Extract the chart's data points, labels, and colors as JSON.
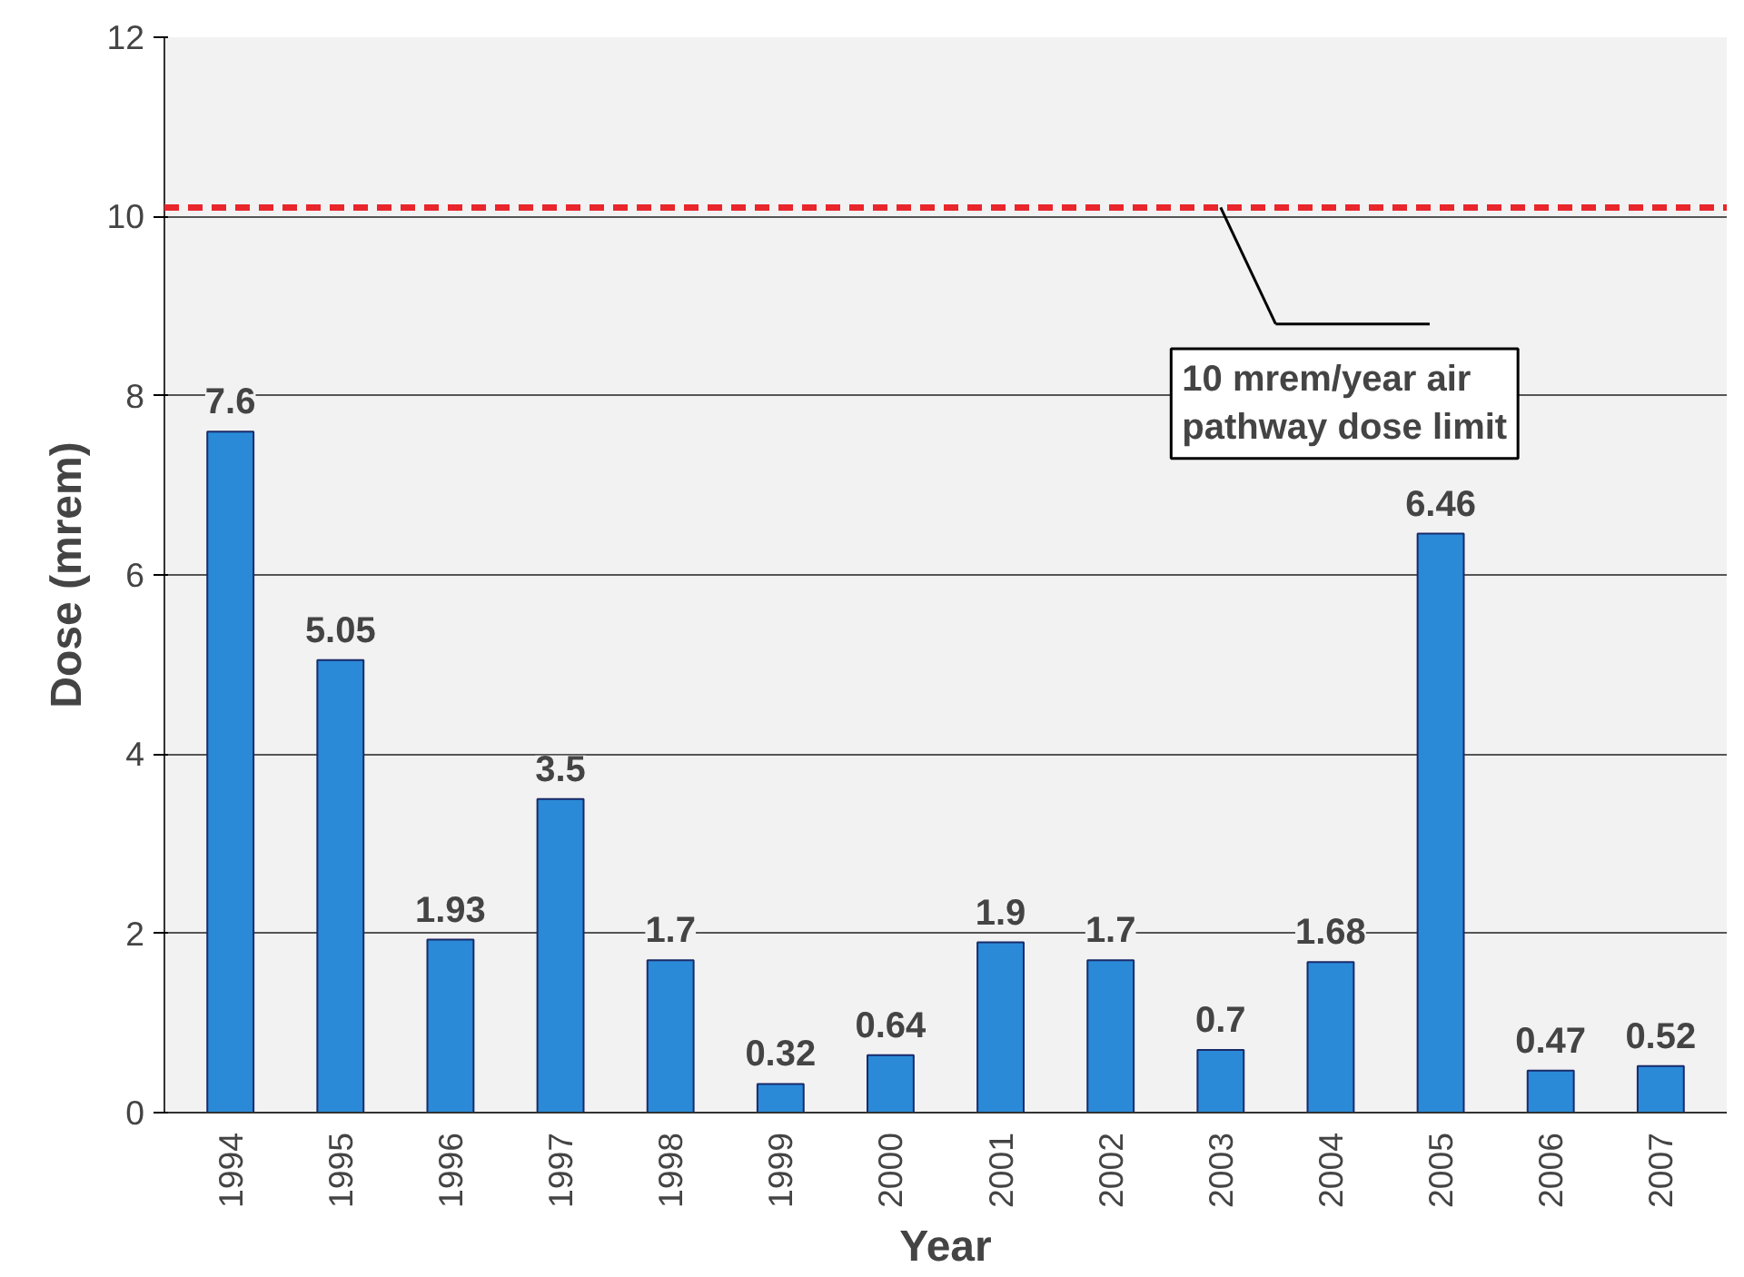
{
  "chart_data": {
    "type": "bar",
    "xlabel": "Year",
    "ylabel": "Dose (mrem)",
    "categories": [
      "1994",
      "1995",
      "1996",
      "1997",
      "1998",
      "1999",
      "2000",
      "2001",
      "2002",
      "2003",
      "2004",
      "2005",
      "2006",
      "2007"
    ],
    "values": [
      7.6,
      5.05,
      1.93,
      3.5,
      1.7,
      0.32,
      0.64,
      1.9,
      1.7,
      0.7,
      1.68,
      6.46,
      0.47,
      0.52
    ],
    "color": "#2a8ad8",
    "data_labels": true,
    "ylim": [
      0,
      12
    ],
    "yticks": [
      0,
      2,
      4,
      6,
      8,
      10,
      12
    ],
    "grid": "y",
    "ref_lines": [
      {
        "axis": "y",
        "value": 10.1,
        "label": "10 mrem/year air\npathway dose limit",
        "color": "#e8262b",
        "line_style": "dashed"
      }
    ]
  }
}
